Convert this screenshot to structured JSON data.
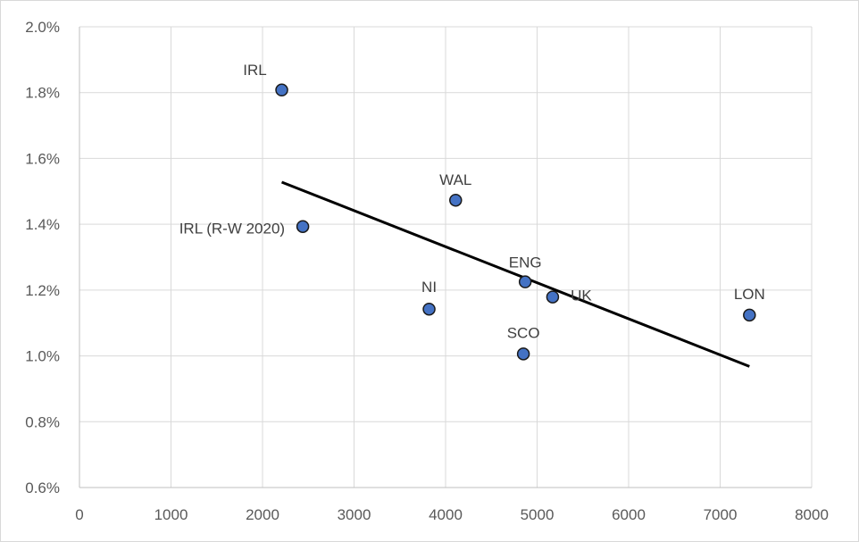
{
  "chart_data": {
    "type": "scatter",
    "title": "",
    "xlabel": "",
    "ylabel": "",
    "xlim": [
      0,
      8000
    ],
    "ylim": [
      0.006,
      0.02
    ],
    "x_ticks": [
      0,
      1000,
      2000,
      3000,
      4000,
      5000,
      6000,
      7000,
      8000
    ],
    "y_ticks": [
      0.006,
      0.008,
      0.01,
      0.012,
      0.014,
      0.016,
      0.018,
      0.02
    ],
    "y_tick_labels": [
      "0.6%",
      "0.8%",
      "1.0%",
      "1.2%",
      "1.4%",
      "1.6%",
      "1.8%",
      "2.0%"
    ],
    "y_format": "percent",
    "grid": true,
    "legend": "none",
    "points": [
      {
        "label": "IRL",
        "x": 2210,
        "y": 0.01808
      },
      {
        "label": "IRL (R-W 2020)",
        "x": 2440,
        "y": 0.01393
      },
      {
        "label": "WAL",
        "x": 4110,
        "y": 0.01473
      },
      {
        "label": "NI",
        "x": 3820,
        "y": 0.01142
      },
      {
        "label": "ENG",
        "x": 4870,
        "y": 0.01225
      },
      {
        "label": "UK",
        "x": 5170,
        "y": 0.01179
      },
      {
        "label": "SCO",
        "x": 4850,
        "y": 0.01006
      },
      {
        "label": "LON",
        "x": 7320,
        "y": 0.01124
      }
    ],
    "trendline": {
      "x1": 2210,
      "y1": 0.01528,
      "x2": 7320,
      "y2": 0.00968
    },
    "colors": {
      "marker_fill": "#4472C4",
      "marker_stroke": "#1a1a1a",
      "trendline": "#000000",
      "grid": "#d9d9d9",
      "axis": "#bfbfbf"
    }
  }
}
